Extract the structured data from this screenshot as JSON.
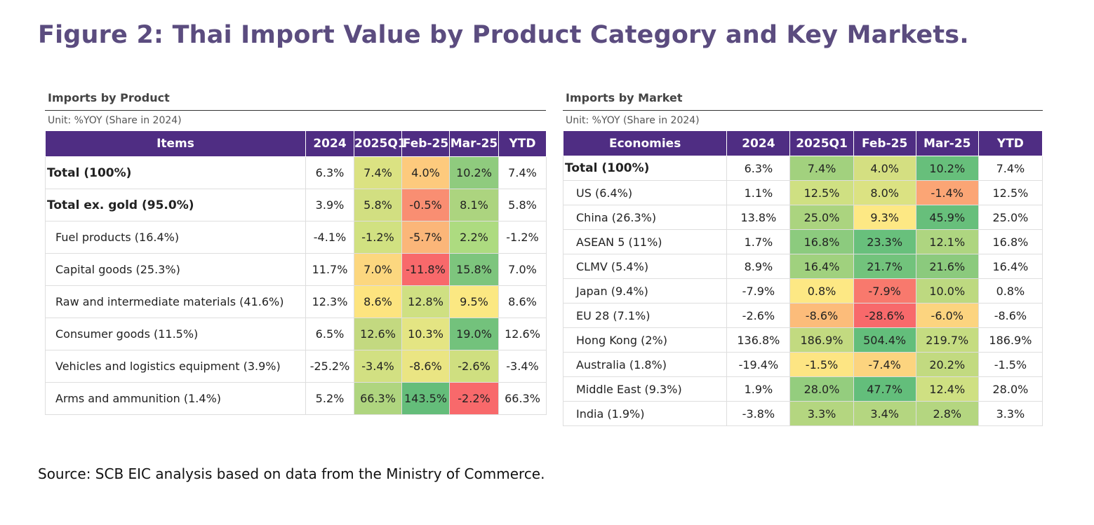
{
  "title": "Figure 2: Thai Import Value by Product Category and Key Markets.",
  "source": "Source: SCB EIC analysis based on data from the Ministry of Commerce.",
  "colors": {
    "header_bg": "#4f2d83",
    "title": "#5b4c7f",
    "scale_low": "#f8696b",
    "scale_mid": "#ffeb84",
    "scale_high": "#63be7b"
  },
  "chart_data": [
    {
      "type": "table",
      "title": "Imports by Product",
      "unit": "Unit: %YOY (Share in 2024)",
      "columns": [
        "Items",
        "2024",
        "2025Q1",
        "Feb-25",
        "Mar-25",
        "YTD"
      ],
      "rows": [
        {
          "label": "Total (100%)",
          "style": "bold",
          "values": [
            "6.3%",
            "7.4%",
            "4.0%",
            "10.2%",
            "7.4%"
          ]
        },
        {
          "label": "Total ex. gold (95.0%)",
          "style": "bold",
          "values": [
            "3.9%",
            "5.8%",
            "-0.5%",
            "8.1%",
            "5.8%"
          ]
        },
        {
          "label": "Fuel products (16.4%)",
          "style": "indent",
          "values": [
            "-4.1%",
            "-1.2%",
            "-5.7%",
            "2.2%",
            "-1.2%"
          ]
        },
        {
          "label": "Capital goods (25.3%)",
          "style": "indent",
          "values": [
            "11.7%",
            "7.0%",
            "-11.8%",
            "15.8%",
            "7.0%"
          ]
        },
        {
          "label": "Raw and intermediate materials (41.6%)",
          "style": "indent",
          "values": [
            "12.3%",
            "8.6%",
            "12.8%",
            "9.5%",
            "8.6%"
          ]
        },
        {
          "label": "Consumer goods (11.5%)",
          "style": "indent",
          "values": [
            "6.5%",
            "12.6%",
            "10.3%",
            "19.0%",
            "12.6%"
          ]
        },
        {
          "label": "Vehicles and logistics equipment (3.9%)",
          "style": "indent",
          "values": [
            "-25.2%",
            "-3.4%",
            "-8.6%",
            "-2.6%",
            "-3.4%"
          ]
        },
        {
          "label": "Arms and ammunition (1.4%)",
          "style": "indent",
          "values": [
            "5.2%",
            "66.3%",
            "143.5%",
            "-2.2%",
            "66.3%"
          ]
        }
      ],
      "heat_colors": [
        [
          "#dbe282",
          "#fdca7d",
          "#8fcb7e"
        ],
        [
          "#d2df81",
          "#f98e72",
          "#acd47f"
        ],
        [
          "#d1e181",
          "#fbb679",
          "#addb80"
        ],
        [
          "#fcd77f",
          "#f8696b",
          "#7dc57d"
        ],
        [
          "#fde47f",
          "#cfe082",
          "#fbe882"
        ],
        [
          "#c3d980",
          "#e4e583",
          "#73c27c"
        ],
        [
          "#d2e082",
          "#eae583",
          "#cfdf80"
        ],
        [
          "#afd57f",
          "#64bd7a",
          "#f8696b"
        ]
      ]
    },
    {
      "type": "table",
      "title": "Imports by Market",
      "unit": "Unit: %YOY (Share in 2024)",
      "columns": [
        "Economies",
        "2024",
        "2025Q1",
        "Feb-25",
        "Mar-25",
        "YTD"
      ],
      "rows": [
        {
          "label": "Total (100%)",
          "style": "bold",
          "values": [
            "6.3%",
            "7.4%",
            "4.0%",
            "10.2%",
            "7.4%"
          ]
        },
        {
          "label": "US (6.4%)",
          "style": "indent",
          "values": [
            "1.1%",
            "12.5%",
            "8.0%",
            "-1.4%",
            "12.5%"
          ]
        },
        {
          "label": "China (26.3%)",
          "style": "indent",
          "values": [
            "13.8%",
            "25.0%",
            "9.3%",
            "45.9%",
            "25.0%"
          ]
        },
        {
          "label": "ASEAN 5 (11%)",
          "style": "indent",
          "values": [
            "1.7%",
            "16.8%",
            "23.3%",
            "12.1%",
            "16.8%"
          ]
        },
        {
          "label": "CLMV (5.4%)",
          "style": "indent",
          "values": [
            "8.9%",
            "16.4%",
            "21.7%",
            "21.6%",
            "16.4%"
          ]
        },
        {
          "label": "Japan (9.4%)",
          "style": "indent",
          "values": [
            "-7.9%",
            "0.8%",
            "-7.9%",
            "10.0%",
            "0.8%"
          ]
        },
        {
          "label": "EU 28 (7.1%)",
          "style": "indent",
          "values": [
            "-2.6%",
            "-8.6%",
            "-28.6%",
            "-6.0%",
            "-8.6%"
          ]
        },
        {
          "label": "Hong Kong (2%)",
          "style": "indent",
          "values": [
            "136.8%",
            "186.9%",
            "504.4%",
            "219.7%",
            "186.9%"
          ]
        },
        {
          "label": "Australia (1.8%)",
          "style": "indent",
          "values": [
            "-19.4%",
            "-1.5%",
            "-7.4%",
            "20.2%",
            "-1.5%"
          ]
        },
        {
          "label": "Middle East (9.3%)",
          "style": "indent",
          "values": [
            "1.9%",
            "28.0%",
            "47.7%",
            "12.4%",
            "28.0%"
          ]
        },
        {
          "label": "India (1.9%)",
          "style": "indent",
          "values": [
            "-3.8%",
            "3.3%",
            "3.4%",
            "2.8%",
            "3.3%"
          ]
        }
      ],
      "heat_colors": [
        [
          "#a2d17e",
          "#d4df81",
          "#67bf7b"
        ],
        [
          "#cfe082",
          "#dbe282",
          "#fba575"
        ],
        [
          "#abd47f",
          "#fde884",
          "#67bf7b"
        ],
        [
          "#8ccb7e",
          "#68c07c",
          "#aed580"
        ],
        [
          "#a0d17e",
          "#72c37c",
          "#8bca7d"
        ],
        [
          "#fde884",
          "#f8796d",
          "#bdd980"
        ],
        [
          "#fcbc7a",
          "#f8696b",
          "#fcd47f"
        ],
        [
          "#c2da80",
          "#63be7b",
          "#c5dc81"
        ],
        [
          "#fde583",
          "#fcd47f",
          "#c2da80"
        ],
        [
          "#94cd7e",
          "#63be7b",
          "#cfe082"
        ],
        [
          "#b4d680",
          "#b4d680",
          "#b4d680"
        ]
      ]
    }
  ]
}
